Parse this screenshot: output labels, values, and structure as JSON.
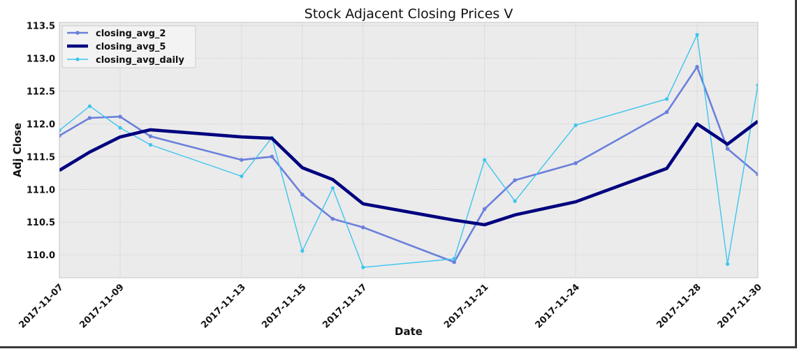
{
  "chart_data": {
    "type": "line",
    "title": "Stock Adjacent Closing Prices V",
    "xlabel": "Date",
    "ylabel": "Adj Close",
    "ylim": [
      109.65,
      113.55
    ],
    "grid": true,
    "legend_position": "top-left",
    "y_ticks": [
      "110.0",
      "110.5",
      "111.0",
      "111.5",
      "112.0",
      "112.5",
      "113.0",
      "113.5"
    ],
    "x_tick_labels": [
      "2017-11-07",
      "2017-11-09",
      "2017-11-13",
      "2017-11-15",
      "2017-11-17",
      "2017-11-21",
      "2017-11-24",
      "2017-11-28",
      "2017-11-30"
    ],
    "x": [
      "2017-11-07",
      "2017-11-08",
      "2017-11-09",
      "2017-11-10",
      "2017-11-13",
      "2017-11-14",
      "2017-11-15",
      "2017-11-16",
      "2017-11-17",
      "2017-11-20",
      "2017-11-21",
      "2017-11-22",
      "2017-11-24",
      "2017-11-27",
      "2017-11-28",
      "2017-11-29",
      "2017-11-30"
    ],
    "series": [
      {
        "name": "closing_avg_2",
        "color": "#6b80dc",
        "values": [
          111.82,
          112.09,
          112.11,
          111.81,
          111.45,
          111.5,
          110.92,
          110.55,
          110.42,
          109.89,
          110.7,
          111.14,
          111.4,
          112.18,
          112.87,
          111.62,
          111.23
        ]
      },
      {
        "name": "closing_avg_5",
        "color": "#00007f",
        "values": [
          111.29,
          111.57,
          111.8,
          111.91,
          111.8,
          111.78,
          111.33,
          111.15,
          110.78,
          110.53,
          110.46,
          110.61,
          110.81,
          111.32,
          112.0,
          111.69,
          112.04
        ]
      },
      {
        "name": "closing_avg_daily",
        "color": "#3cc5ee",
        "values": [
          111.9,
          112.27,
          111.94,
          111.68,
          111.2,
          111.79,
          110.06,
          111.02,
          109.81,
          109.94,
          111.45,
          110.82,
          111.98,
          112.38,
          113.36,
          109.86,
          112.59
        ]
      }
    ]
  }
}
